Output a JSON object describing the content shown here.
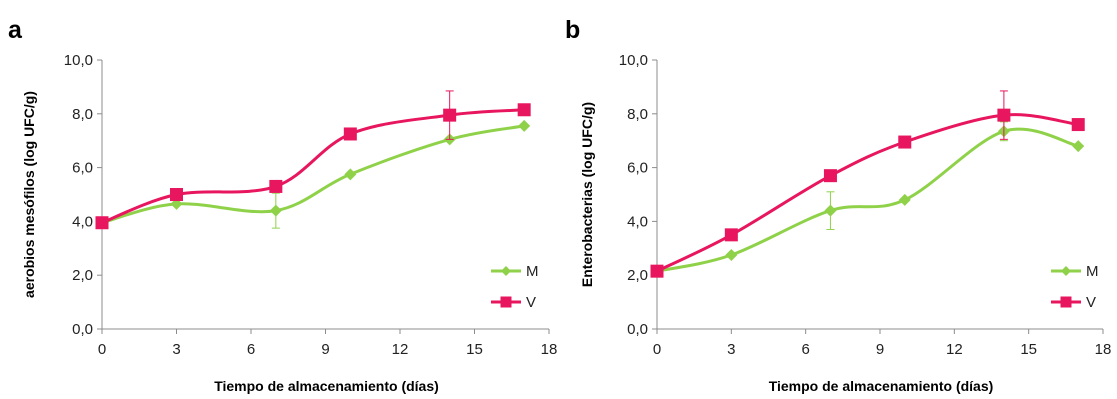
{
  "chart_data": [
    {
      "type": "line",
      "panel_label": "a",
      "xlabel": "Tiempo de almacenamiento  (días)",
      "ylabel": "aerobios mesófilos (log UFC/g)",
      "xlim": [
        0,
        18
      ],
      "ylim": [
        0,
        10
      ],
      "x_ticks": [
        "0",
        "3",
        "6",
        "9",
        "12",
        "15",
        "18"
      ],
      "y_ticks": [
        "0,0",
        "2,0",
        "4,0",
        "6,0",
        "8,0",
        "10,0"
      ],
      "grid": false,
      "legend_position": "bottom-right",
      "x": [
        0,
        3,
        7,
        10,
        14,
        17
      ],
      "series": [
        {
          "name": "M",
          "color": "#8fd24a",
          "marker": "diamond",
          "values": [
            3.95,
            4.65,
            4.4,
            5.75,
            7.05,
            7.55
          ],
          "error": [
            0,
            0,
            0.65,
            0,
            0,
            0
          ]
        },
        {
          "name": "V",
          "color": "#e8165e",
          "marker": "square",
          "values": [
            3.95,
            5.0,
            5.3,
            7.25,
            7.95,
            8.15
          ],
          "error": [
            0,
            0,
            0,
            0,
            0.9,
            0
          ]
        }
      ]
    },
    {
      "type": "line",
      "panel_label": "b",
      "xlabel": "Tiempo de almacenamiento  (días)",
      "ylabel": "Enterobacterias (log UFC/g)",
      "xlim": [
        0,
        18
      ],
      "ylim": [
        0,
        10
      ],
      "x_ticks": [
        "0",
        "3",
        "6",
        "9",
        "12",
        "15",
        "18"
      ],
      "y_ticks": [
        "0,0",
        "2,0",
        "4,0",
        "6,0",
        "8,0",
        "10,0"
      ],
      "grid": false,
      "legend_position": "bottom-right",
      "x": [
        0,
        3,
        7,
        10,
        14,
        17
      ],
      "series": [
        {
          "name": "M",
          "color": "#8fd24a",
          "marker": "diamond",
          "values": [
            2.15,
            2.75,
            4.4,
            4.8,
            7.35,
            6.8
          ],
          "error": [
            0,
            0,
            0.7,
            0,
            0.35,
            0
          ]
        },
        {
          "name": "V",
          "color": "#e8165e",
          "marker": "square",
          "values": [
            2.15,
            3.5,
            5.7,
            6.95,
            7.95,
            7.6
          ],
          "error": [
            0,
            0,
            0,
            0,
            0.9,
            0
          ]
        }
      ]
    }
  ]
}
